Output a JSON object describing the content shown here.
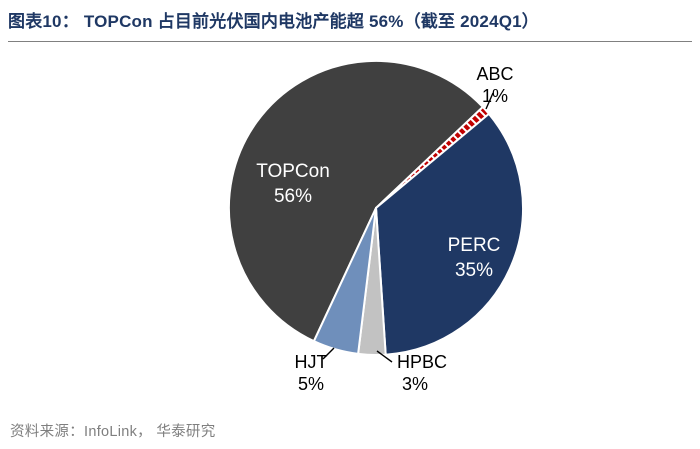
{
  "page": {
    "title": "图表10： TOPCon 占目前光伏国内电池产能超 56%（截至 2024Q1）",
    "source": "资料来源：InfoLink， 华泰研究",
    "title_color": "#1F3864",
    "rule_color": "#808080",
    "source_color": "#7F7F7F"
  },
  "chart_data": {
    "type": "pie",
    "title": "TOPCon 占目前光伏国内电池产能超 56%（截至 2024Q1）",
    "unit": "%",
    "legend": "none (labels on slices)",
    "start_angle_deg": 205,
    "slices": [
      {
        "name": "TOPCon",
        "value": 56,
        "color": "#404040",
        "label_color": "#FFFFFF",
        "label_pos": "inside"
      },
      {
        "name": "ABC",
        "value": 1,
        "color": "#C00000",
        "pattern": "white-diagonal-hatch",
        "label_color": "#000000",
        "label_pos": "outside"
      },
      {
        "name": "PERC",
        "value": 35,
        "color": "#1F3864",
        "label_color": "#FFFFFF",
        "label_pos": "inside"
      },
      {
        "name": "HPBC",
        "value": 3,
        "color": "#C2C2C2",
        "label_color": "#000000",
        "label_pos": "outside"
      },
      {
        "name": "HJT",
        "value": 5,
        "color": "#6F8FBB",
        "label_color": "#000000",
        "label_pos": "outside"
      }
    ]
  }
}
